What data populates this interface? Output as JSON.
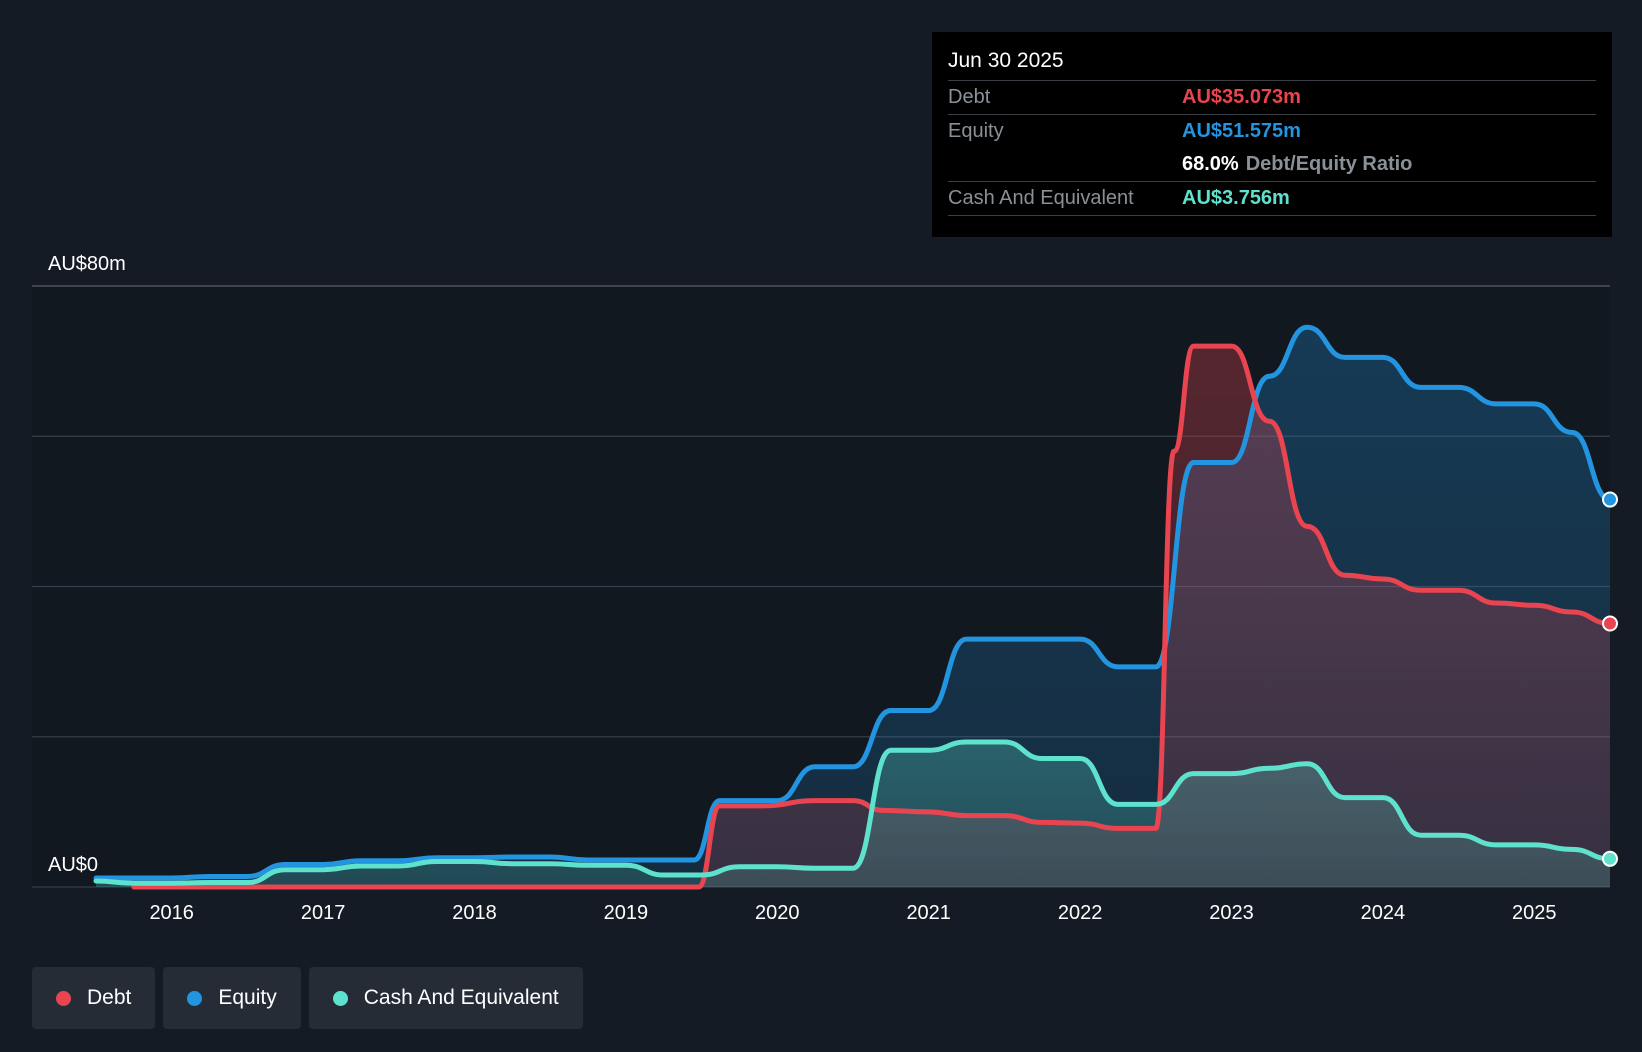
{
  "chart_data": {
    "type": "area",
    "title": "",
    "y_axis": {
      "top_label": "AU$80m",
      "bottom_label": "AU$0",
      "ylim": [
        0,
        80
      ],
      "gridlines": [
        0,
        20,
        40,
        60,
        80
      ]
    },
    "xlim": [
      2015.5,
      2025.5
    ],
    "x_ticks": [
      "2016",
      "2017",
      "2018",
      "2019",
      "2020",
      "2021",
      "2022",
      "2023",
      "2024",
      "2025"
    ],
    "series": [
      {
        "name": "Debt",
        "color": "#e84550",
        "points": [
          [
            2015.75,
            0
          ],
          [
            2019.48,
            0
          ],
          [
            2019.62,
            10.8
          ],
          [
            2019.9,
            10.8
          ],
          [
            2020.25,
            11.5
          ],
          [
            2020.5,
            11.5
          ],
          [
            2020.7,
            10.2
          ],
          [
            2021.0,
            10.0
          ],
          [
            2021.25,
            9.5
          ],
          [
            2021.5,
            9.5
          ],
          [
            2021.75,
            8.6
          ],
          [
            2022.0,
            8.5
          ],
          [
            2022.25,
            7.8
          ],
          [
            2022.5,
            7.8
          ],
          [
            2022.62,
            58.0
          ],
          [
            2022.75,
            72.0
          ],
          [
            2023.0,
            72.0
          ],
          [
            2023.25,
            62.0
          ],
          [
            2023.5,
            48.0
          ],
          [
            2023.75,
            41.5
          ],
          [
            2024.0,
            41.0
          ],
          [
            2024.25,
            39.5
          ],
          [
            2024.5,
            39.5
          ],
          [
            2024.75,
            37.8
          ],
          [
            2025.0,
            37.5
          ],
          [
            2025.25,
            36.6
          ],
          [
            2025.5,
            35.073
          ]
        ]
      },
      {
        "name": "Equity",
        "color": "#2394df",
        "points": [
          [
            2015.5,
            1.2
          ],
          [
            2015.75,
            1.2
          ],
          [
            2016.0,
            1.2
          ],
          [
            2016.25,
            1.4
          ],
          [
            2016.5,
            1.4
          ],
          [
            2016.75,
            3.0
          ],
          [
            2017.0,
            3.0
          ],
          [
            2017.25,
            3.5
          ],
          [
            2017.5,
            3.5
          ],
          [
            2017.75,
            3.9
          ],
          [
            2018.0,
            3.9
          ],
          [
            2018.25,
            4.0
          ],
          [
            2018.5,
            4.0
          ],
          [
            2018.75,
            3.6
          ],
          [
            2019.0,
            3.6
          ],
          [
            2019.25,
            3.6
          ],
          [
            2019.45,
            3.6
          ],
          [
            2019.62,
            11.5
          ],
          [
            2020.0,
            11.5
          ],
          [
            2020.25,
            16.0
          ],
          [
            2020.5,
            16.0
          ],
          [
            2020.75,
            23.5
          ],
          [
            2021.0,
            23.5
          ],
          [
            2021.25,
            33.0
          ],
          [
            2021.5,
            33.0
          ],
          [
            2022.0,
            33.0
          ],
          [
            2022.25,
            29.3
          ],
          [
            2022.5,
            29.3
          ],
          [
            2022.75,
            56.5
          ],
          [
            2023.0,
            56.5
          ],
          [
            2023.25,
            68.0
          ],
          [
            2023.5,
            74.5
          ],
          [
            2023.75,
            70.5
          ],
          [
            2024.0,
            70.5
          ],
          [
            2024.25,
            66.5
          ],
          [
            2024.5,
            66.5
          ],
          [
            2024.75,
            64.3
          ],
          [
            2025.0,
            64.3
          ],
          [
            2025.25,
            60.5
          ],
          [
            2025.5,
            51.575
          ]
        ]
      },
      {
        "name": "Cash And Equivalent",
        "color": "#5fe2cd",
        "points": [
          [
            2015.5,
            0.8
          ],
          [
            2015.75,
            0.5
          ],
          [
            2016.0,
            0.5
          ],
          [
            2016.25,
            0.6
          ],
          [
            2016.5,
            0.6
          ],
          [
            2016.75,
            2.3
          ],
          [
            2017.0,
            2.3
          ],
          [
            2017.25,
            2.8
          ],
          [
            2017.5,
            2.8
          ],
          [
            2017.75,
            3.4
          ],
          [
            2018.0,
            3.4
          ],
          [
            2018.25,
            3.1
          ],
          [
            2018.5,
            3.1
          ],
          [
            2018.75,
            2.9
          ],
          [
            2019.0,
            2.9
          ],
          [
            2019.25,
            1.6
          ],
          [
            2019.5,
            1.6
          ],
          [
            2019.75,
            2.7
          ],
          [
            2020.0,
            2.7
          ],
          [
            2020.25,
            2.5
          ],
          [
            2020.5,
            2.5
          ],
          [
            2020.75,
            18.2
          ],
          [
            2021.0,
            18.2
          ],
          [
            2021.25,
            19.3
          ],
          [
            2021.5,
            19.3
          ],
          [
            2021.75,
            17.1
          ],
          [
            2022.0,
            17.1
          ],
          [
            2022.25,
            11.0
          ],
          [
            2022.5,
            11.0
          ],
          [
            2022.75,
            15.1
          ],
          [
            2023.0,
            15.1
          ],
          [
            2023.25,
            15.8
          ],
          [
            2023.5,
            16.4
          ],
          [
            2023.75,
            11.9
          ],
          [
            2024.0,
            11.9
          ],
          [
            2024.25,
            6.9
          ],
          [
            2024.5,
            6.9
          ],
          [
            2024.75,
            5.6
          ],
          [
            2025.0,
            5.6
          ],
          [
            2025.25,
            5.0
          ],
          [
            2025.5,
            3.756
          ]
        ]
      }
    ],
    "legend": [
      "Debt",
      "Equity",
      "Cash And Equivalent"
    ],
    "legend_placement": "bottom-left"
  },
  "tooltip": {
    "date": "Jun 30 2025",
    "debt_label": "Debt",
    "debt_value": "AU$35.073m",
    "equity_label": "Equity",
    "equity_value": "AU$51.575m",
    "ratio_value": "68.0%",
    "ratio_label": "Debt/Equity Ratio",
    "cash_label": "Cash And Equivalent",
    "cash_value": "AU$3.756m"
  },
  "legend": {
    "debt": "Debt",
    "equity": "Equity",
    "cash": "Cash And Equivalent"
  },
  "colors": {
    "debt": "#e84550",
    "equity": "#2394df",
    "cash": "#5fe2cd"
  }
}
